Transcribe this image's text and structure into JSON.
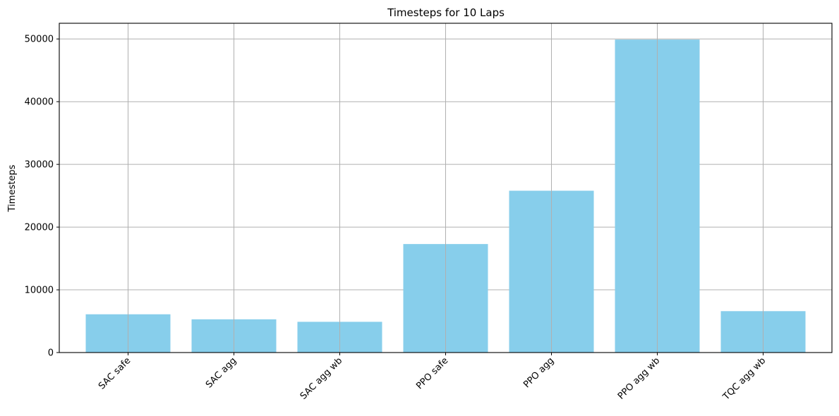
{
  "chart_data": {
    "type": "bar",
    "title": "Timesteps for 10 Laps",
    "xlabel": "",
    "ylabel": "Timesteps",
    "categories": [
      "SAC safe",
      "SAC agg",
      "SAC agg wb",
      "PPO safe",
      "PPO agg",
      "PPO agg wb",
      "TQC agg wb"
    ],
    "values": [
      6100,
      5300,
      4900,
      17300,
      25800,
      49900,
      6600
    ],
    "ylim": [
      0,
      52500
    ],
    "yticks": [
      0,
      10000,
      20000,
      30000,
      40000,
      50000
    ],
    "grid": true,
    "bar_color": "#87ceeb",
    "x_tick_rotation_deg": 45
  }
}
